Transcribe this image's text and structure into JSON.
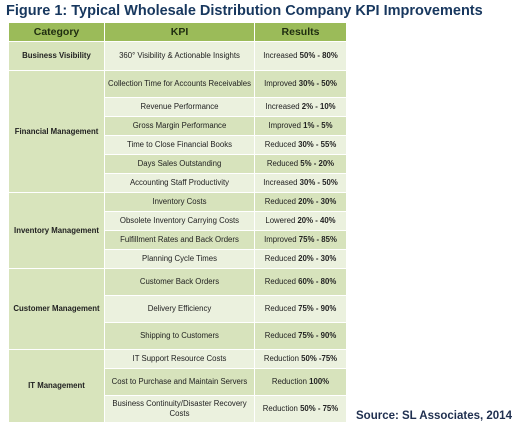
{
  "title": "Figure 1: Typical Wholesale Distribution Company KPI Improvements",
  "headers": {
    "category": "Category",
    "kpi": "KPI",
    "results": "Results"
  },
  "categories": [
    {
      "name": "Business Visibility",
      "rows": [
        {
          "kpi": "360° Visibility & Actionable Insights",
          "dir": "Increased",
          "range": "50% - 80%"
        }
      ]
    },
    {
      "name": "Financial Management",
      "rows": [
        {
          "kpi": "Collection Time for Accounts Receivables",
          "dir": "Improved",
          "range": "30% - 50%"
        },
        {
          "kpi": "Revenue Performance",
          "dir": "Increased",
          "range": "2% - 10%"
        },
        {
          "kpi": "Gross Margin Performance",
          "dir": "Improved",
          "range": "1% - 5%"
        },
        {
          "kpi": "Time to Close Financial Books",
          "dir": "Reduced",
          "range": "30% - 55%"
        },
        {
          "kpi": "Days Sales Outstanding",
          "dir": "Reduced",
          "range": "5% - 20%"
        },
        {
          "kpi": "Accounting Staff Productivity",
          "dir": "Increased",
          "range": "30% - 50%"
        }
      ]
    },
    {
      "name": "Inventory Management",
      "rows": [
        {
          "kpi": "Inventory Costs",
          "dir": "Reduced",
          "range": "20% - 30%"
        },
        {
          "kpi": "Obsolete Inventory Carrying Costs",
          "dir": "Lowered",
          "range": "20% - 40%"
        },
        {
          "kpi": "Fulfillment Rates and Back Orders",
          "dir": "Improved",
          "range": "75% - 85%"
        },
        {
          "kpi": "Planning Cycle Times",
          "dir": "Reduced",
          "range": "20% - 30%"
        }
      ]
    },
    {
      "name": "Customer Management",
      "rows": [
        {
          "kpi": "Customer Back Orders",
          "dir": "Reduced",
          "range": "60% - 80%"
        },
        {
          "kpi": "Delivery Efficiency",
          "dir": "Reduced",
          "range": "75% - 90%"
        },
        {
          "kpi": "Shipping to Customers",
          "dir": "Reduced",
          "range": "75% - 90%"
        }
      ]
    },
    {
      "name": "IT Management",
      "rows": [
        {
          "kpi": "IT Support Resource Costs",
          "dir": "Reduction",
          "range": "50% -75%"
        },
        {
          "kpi": "Cost to Purchase and Maintain Servers",
          "dir": "Reduction",
          "range": "100%"
        },
        {
          "kpi": "Business Continuity/Disaster Recovery Costs",
          "dir": "Reduction",
          "range": "50% - 75%"
        }
      ]
    }
  ],
  "source": "Source: SL Associates, 2014"
}
